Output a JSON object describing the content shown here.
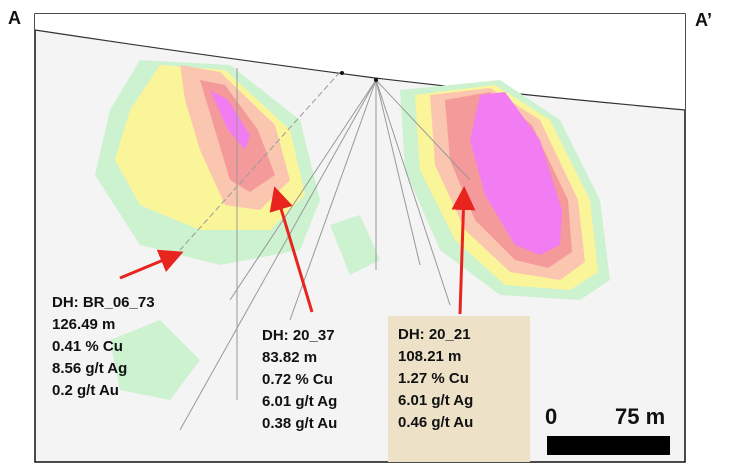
{
  "section_labels": {
    "start": "A",
    "end": "A’"
  },
  "drillholes": [
    {
      "id": "DH: BR_06_73",
      "length": "126.49 m",
      "cu": "0.41 % Cu",
      "ag": "8.56 g/t Ag",
      "au": "0.2 g/t Au"
    },
    {
      "id": "DH: 20_37",
      "length": "83.82 m",
      "cu": "0.72 % Cu",
      "ag": "6.01 g/t Ag",
      "au": "0.38 g/t Au"
    },
    {
      "id": "DH: 20_21",
      "length": "108.21 m",
      "cu": "1.27 % Cu",
      "ag": "6.01 g/t Ag",
      "au": "0.46 g/t Au"
    }
  ],
  "scale": {
    "start": "0",
    "end": "75 m"
  },
  "colors": {
    "arrow": "#e8241f",
    "highlight_box": "#ede2c8",
    "grade_low": "#cdf2cf",
    "grade_mid": "#fbf59a",
    "grade_high": "#fbc6b0",
    "grade_higher": "#f59a9a",
    "grade_peak": "#f27df2"
  }
}
